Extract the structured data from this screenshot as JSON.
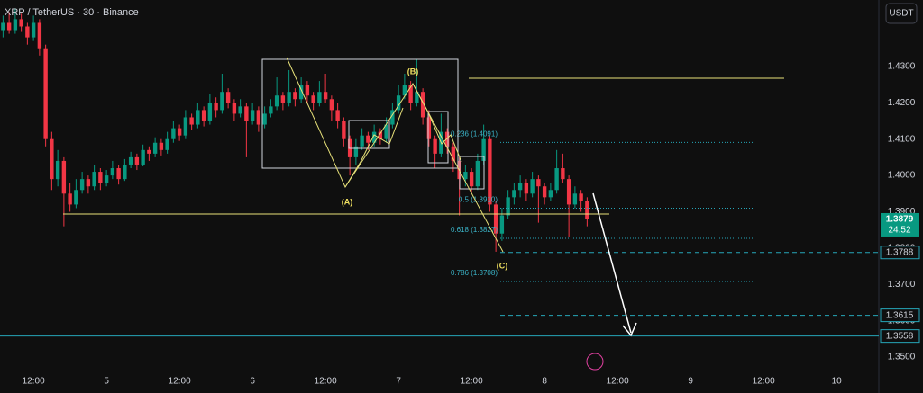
{
  "chart_data": {
    "type": "candlestick",
    "title": "XRP / TetherUS · 30 · Binance",
    "currency": "USDT",
    "up_color": "#089981",
    "down_color": "#f23645",
    "xlim": [
      0,
      144
    ],
    "ylim": [
      1.3468,
      1.4483
    ],
    "xticks": [
      {
        "value": 5.5,
        "label": "12:00"
      },
      {
        "value": 17.5,
        "label": "5"
      },
      {
        "value": 29.5,
        "label": "12:00"
      },
      {
        "value": 41.5,
        "label": "6"
      },
      {
        "value": 53.5,
        "label": "12:00"
      },
      {
        "value": 65.5,
        "label": "7"
      },
      {
        "value": 77.5,
        "label": "12:00"
      },
      {
        "value": 89.5,
        "label": "8"
      },
      {
        "value": 101.5,
        "label": "12:00"
      },
      {
        "value": 113.5,
        "label": "9"
      },
      {
        "value": 125.5,
        "label": "12:00"
      },
      {
        "value": 137.5,
        "label": "10"
      }
    ],
    "yticks": [
      {
        "value": 1.35,
        "label": "1.3500"
      },
      {
        "value": 1.36,
        "label": "1.3600"
      },
      {
        "value": 1.37,
        "label": "1.3700"
      },
      {
        "value": 1.38,
        "label": "1.3800"
      },
      {
        "value": 1.39,
        "label": "1.3900"
      },
      {
        "value": 1.4,
        "label": "1.4000"
      },
      {
        "value": 1.41,
        "label": "1.4100"
      },
      {
        "value": 1.42,
        "label": "1.4200"
      },
      {
        "value": 1.43,
        "label": "1.4300"
      }
    ],
    "x": [
      0.5,
      1.5,
      2.5,
      3.5,
      4.5,
      5.5,
      6.5,
      7.5,
      8.5,
      9.5,
      10.5,
      11.5,
      12.5,
      13.5,
      14.5,
      15.5,
      16.5,
      17.5,
      18.5,
      19.5,
      20.5,
      21.5,
      22.5,
      23.5,
      24.5,
      25.5,
      26.5,
      27.5,
      28.5,
      29.5,
      30.5,
      31.5,
      32.5,
      33.5,
      34.5,
      35.5,
      36.5,
      37.5,
      38.5,
      39.5,
      40.5,
      41.5,
      42.5,
      43.5,
      44.5,
      45.5,
      46.5,
      47.5,
      48.5,
      49.5,
      50.5,
      51.5,
      52.5,
      53.5,
      54.5,
      55.5,
      56.5,
      57.5,
      58.5,
      59.5,
      60.5,
      61.5,
      62.5,
      63.5,
      64.5,
      65.5,
      66.5,
      67.5,
      68.5,
      69.5,
      70.5,
      71.5,
      72.5,
      73.5,
      74.5,
      75.5,
      76.5,
      77.5,
      78.5,
      79.5,
      80.5,
      81.5,
      82.5,
      83.5,
      84.5,
      85.5,
      86.5,
      87.5,
      88.5,
      89.5,
      90.5,
      91.5,
      92.5,
      93.5,
      94.5,
      95.5,
      96.5
    ],
    "ohlc": [
      [
        1.44,
        1.444,
        1.438,
        1.442
      ],
      [
        1.442,
        1.445,
        1.439,
        1.44
      ],
      [
        1.44,
        1.446,
        1.439,
        1.443
      ],
      [
        1.443,
        1.4445,
        1.4395,
        1.441
      ],
      [
        1.441,
        1.442,
        1.436,
        1.438
      ],
      [
        1.438,
        1.444,
        1.437,
        1.442
      ],
      [
        1.442,
        1.443,
        1.433,
        1.435
      ],
      [
        1.435,
        1.436,
        1.408,
        1.41
      ],
      [
        1.41,
        1.412,
        1.396,
        1.399
      ],
      [
        1.399,
        1.407,
        1.397,
        1.404
      ],
      [
        1.404,
        1.405,
        1.386,
        1.395
      ],
      [
        1.395,
        1.398,
        1.39,
        1.392
      ],
      [
        1.392,
        1.399,
        1.391,
        1.396
      ],
      [
        1.396,
        1.401,
        1.395,
        1.399
      ],
      [
        1.399,
        1.4,
        1.395,
        1.397
      ],
      [
        1.397,
        1.403,
        1.396,
        1.401
      ],
      [
        1.401,
        1.402,
        1.396,
        1.398
      ],
      [
        1.398,
        1.4015,
        1.397,
        1.4
      ],
      [
        1.4,
        1.404,
        1.399,
        1.402
      ],
      [
        1.402,
        1.403,
        1.3975,
        1.399
      ],
      [
        1.399,
        1.4045,
        1.3985,
        1.403
      ],
      [
        1.403,
        1.4065,
        1.402,
        1.405
      ],
      [
        1.405,
        1.406,
        1.4015,
        1.403
      ],
      [
        1.403,
        1.4085,
        1.4025,
        1.407
      ],
      [
        1.407,
        1.408,
        1.404,
        1.406
      ],
      [
        1.406,
        1.4105,
        1.405,
        1.409
      ],
      [
        1.409,
        1.41,
        1.4055,
        1.407
      ],
      [
        1.407,
        1.412,
        1.406,
        1.41
      ],
      [
        1.41,
        1.415,
        1.409,
        1.413
      ],
      [
        1.413,
        1.414,
        1.4095,
        1.411
      ],
      [
        1.411,
        1.418,
        1.41,
        1.416
      ],
      [
        1.416,
        1.417,
        1.4125,
        1.414
      ],
      [
        1.414,
        1.42,
        1.413,
        1.418
      ],
      [
        1.418,
        1.419,
        1.4135,
        1.415
      ],
      [
        1.415,
        1.4225,
        1.414,
        1.42
      ],
      [
        1.42,
        1.4215,
        1.416,
        1.418
      ],
      [
        1.418,
        1.428,
        1.417,
        1.423
      ],
      [
        1.423,
        1.424,
        1.4185,
        1.42
      ],
      [
        1.42,
        1.421,
        1.415,
        1.417
      ],
      [
        1.417,
        1.421,
        1.416,
        1.419
      ],
      [
        1.419,
        1.42,
        1.405,
        1.415
      ],
      [
        1.415,
        1.42,
        1.414,
        1.418
      ],
      [
        1.418,
        1.419,
        1.412,
        1.414
      ],
      [
        1.414,
        1.419,
        1.413,
        1.417
      ],
      [
        1.417,
        1.421,
        1.416,
        1.419
      ],
      [
        1.419,
        1.427,
        1.418,
        1.422
      ],
      [
        1.422,
        1.423,
        1.418,
        1.42
      ],
      [
        1.42,
        1.429,
        1.419,
        1.423
      ],
      [
        1.423,
        1.424,
        1.419,
        1.421
      ],
      [
        1.421,
        1.427,
        1.42,
        1.425
      ],
      [
        1.425,
        1.426,
        1.42,
        1.422
      ],
      [
        1.422,
        1.423,
        1.418,
        1.42
      ],
      [
        1.42,
        1.426,
        1.419,
        1.423
      ],
      [
        1.423,
        1.428,
        1.42,
        1.421
      ],
      [
        1.421,
        1.422,
        1.415,
        1.418
      ],
      [
        1.418,
        1.42,
        1.413,
        1.415
      ],
      [
        1.415,
        1.416,
        1.408,
        1.41
      ],
      [
        1.41,
        1.411,
        1.4,
        1.405
      ],
      [
        1.405,
        1.41,
        1.403,
        1.408
      ],
      [
        1.408,
        1.413,
        1.407,
        1.411
      ],
      [
        1.411,
        1.412,
        1.407,
        1.409
      ],
      [
        1.409,
        1.414,
        1.408,
        1.412
      ],
      [
        1.412,
        1.413,
        1.4085,
        1.41
      ],
      [
        1.41,
        1.416,
        1.409,
        1.414
      ],
      [
        1.414,
        1.42,
        1.413,
        1.418
      ],
      [
        1.418,
        1.425,
        1.417,
        1.422
      ],
      [
        1.422,
        1.428,
        1.421,
        1.425
      ],
      [
        1.425,
        1.426,
        1.418,
        1.42
      ],
      [
        1.42,
        1.432,
        1.419,
        1.423
      ],
      [
        1.423,
        1.424,
        1.414,
        1.416
      ],
      [
        1.416,
        1.418,
        1.408,
        1.41
      ],
      [
        1.41,
        1.411,
        1.402,
        1.406
      ],
      [
        1.406,
        1.417,
        1.405,
        1.412
      ],
      [
        1.412,
        1.413,
        1.406,
        1.408
      ],
      [
        1.408,
        1.409,
        1.401,
        1.404
      ],
      [
        1.404,
        1.405,
        1.389,
        1.399
      ],
      [
        1.399,
        1.403,
        1.397,
        1.401
      ],
      [
        1.401,
        1.402,
        1.395,
        1.397
      ],
      [
        1.397,
        1.406,
        1.396,
        1.404
      ],
      [
        1.404,
        1.414,
        1.403,
        1.41
      ],
      [
        1.41,
        1.411,
        1.39,
        1.392
      ],
      [
        1.392,
        1.393,
        1.379,
        1.384
      ],
      [
        1.384,
        1.391,
        1.382,
        1.389
      ],
      [
        1.389,
        1.396,
        1.388,
        1.394
      ],
      [
        1.394,
        1.398,
        1.392,
        1.396
      ],
      [
        1.396,
        1.4,
        1.394,
        1.398
      ],
      [
        1.398,
        1.399,
        1.393,
        1.395
      ],
      [
        1.395,
        1.401,
        1.394,
        1.399
      ],
      [
        1.399,
        1.4,
        1.387,
        1.397
      ],
      [
        1.397,
        1.398,
        1.392,
        1.394
      ],
      [
        1.394,
        1.398,
        1.393,
        1.396
      ],
      [
        1.396,
        1.407,
        1.395,
        1.402
      ],
      [
        1.402,
        1.406,
        1.398,
        1.399
      ],
      [
        1.399,
        1.4,
        1.383,
        1.392
      ],
      [
        1.392,
        1.397,
        1.391,
        1.395
      ],
      [
        1.395,
        1.396,
        1.39,
        1.393
      ],
      [
        1.393,
        1.394,
        1.386,
        1.3879
      ]
    ],
    "fib_levels": [
      {
        "value": 1.4091,
        "label": "0.236 (1.4091)"
      },
      {
        "value": 1.391,
        "label": "0.5 (1.3910)"
      },
      {
        "value": 1.3827,
        "label": "0.618 (1.3827)"
      },
      {
        "value": 1.3708,
        "label": "0.786 (1.3708)"
      }
    ],
    "wave_labels": [
      "(A)",
      "(B)",
      "(C)"
    ],
    "price_lines": [
      {
        "value": 1.3788,
        "label": "1.3788"
      },
      {
        "value": 1.3615,
        "label": "1.3615"
      },
      {
        "value": 1.3558,
        "label": "1.3558"
      }
    ],
    "current_price": {
      "value": 1.3879,
      "label": "1.3879",
      "countdown": "24:52"
    }
  }
}
